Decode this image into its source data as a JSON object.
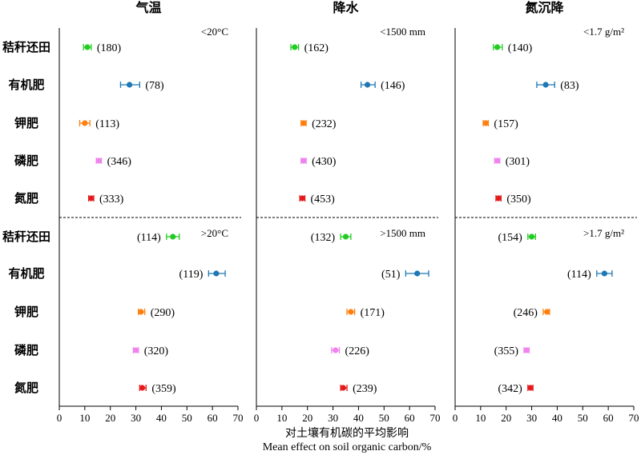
{
  "chart_data": {
    "type": "scatter",
    "axis_title_cn": "对土壤有机碳的平均影响",
    "axis_title_en": "Mean effect on soil organic carbon/%",
    "xlim": [
      0,
      70
    ],
    "xticks": [
      0,
      10,
      20,
      30,
      40,
      50,
      60,
      70
    ],
    "categories": [
      "秸秆还田",
      "有机肥",
      "钾肥",
      "磷肥",
      "氮肥"
    ],
    "series_colors": {
      "秸秆还田": "#22cc22",
      "有机肥": "#1f77b4",
      "钾肥": "#ff7f0e",
      "磷肥": "#ee82ee",
      "氮肥": "#e41a1c"
    },
    "panels": [
      {
        "title": "气温",
        "groups": [
          {
            "condition": "<20°C",
            "points": [
              {
                "category": "秸秆还田",
                "mean": 11,
                "lo": 9.5,
                "hi": 12.5,
                "n": "(180)"
              },
              {
                "category": "有机肥",
                "mean": 27.5,
                "lo": 24,
                "hi": 31.5,
                "n": "(78)"
              },
              {
                "category": "钾肥",
                "mean": 10,
                "lo": 8,
                "hi": 12,
                "n": "(113)"
              },
              {
                "category": "磷肥",
                "mean": 15.5,
                "lo": 14.5,
                "hi": 16.5,
                "n": "(346)"
              },
              {
                "category": "氮肥",
                "mean": 12.5,
                "lo": 11.5,
                "hi": 13.5,
                "n": "(333)"
              }
            ]
          },
          {
            "condition": ">20°C",
            "points": [
              {
                "category": "秸秆还田",
                "mean": 44.5,
                "lo": 42,
                "hi": 47,
                "n": "(114)"
              },
              {
                "category": "有机肥",
                "mean": 61.5,
                "lo": 58.5,
                "hi": 65,
                "n": "(119)"
              },
              {
                "category": "钾肥",
                "mean": 32,
                "lo": 31,
                "hi": 33.5,
                "n": "(290)"
              },
              {
                "category": "磷肥",
                "mean": 30,
                "lo": 29,
                "hi": 31,
                "n": "(320)"
              },
              {
                "category": "氮肥",
                "mean": 32.5,
                "lo": 31.5,
                "hi": 34,
                "n": "(359)"
              }
            ]
          }
        ]
      },
      {
        "title": "降水",
        "groups": [
          {
            "condition": "<1500 mm",
            "points": [
              {
                "category": "秸秆还田",
                "mean": 15,
                "lo": 13.5,
                "hi": 16.5,
                "n": "(162)"
              },
              {
                "category": "有机肥",
                "mean": 43.5,
                "lo": 41,
                "hi": 46.5,
                "n": "(146)"
              },
              {
                "category": "钾肥",
                "mean": 18.5,
                "lo": 17.5,
                "hi": 19.5,
                "n": "(232)"
              },
              {
                "category": "磷肥",
                "mean": 18.5,
                "lo": 17.5,
                "hi": 19.5,
                "n": "(430)"
              },
              {
                "category": "氮肥",
                "mean": 18,
                "lo": 17,
                "hi": 19,
                "n": "(453)"
              }
            ]
          },
          {
            "condition": ">1500 mm",
            "points": [
              {
                "category": "秸秆还田",
                "mean": 35,
                "lo": 33,
                "hi": 37,
                "n": "(132)"
              },
              {
                "category": "有机肥",
                "mean": 63,
                "lo": 58.5,
                "hi": 67.5,
                "n": "(51)"
              },
              {
                "category": "钾肥",
                "mean": 37,
                "lo": 35.5,
                "hi": 38.5,
                "n": "(171)"
              },
              {
                "category": "磷肥",
                "mean": 31,
                "lo": 29.5,
                "hi": 32.5,
                "n": "(226)"
              },
              {
                "category": "氮肥",
                "mean": 34,
                "lo": 33,
                "hi": 35.5,
                "n": "(239)"
              }
            ]
          }
        ]
      },
      {
        "title": "氮沉降",
        "groups": [
          {
            "condition": "<1.7 g/m²",
            "points": [
              {
                "category": "秸秆还田",
                "mean": 16.5,
                "lo": 15,
                "hi": 18.5,
                "n": "(140)"
              },
              {
                "category": "有机肥",
                "mean": 35.5,
                "lo": 32,
                "hi": 39,
                "n": "(83)"
              },
              {
                "category": "钾肥",
                "mean": 12,
                "lo": 11,
                "hi": 13,
                "n": "(157)"
              },
              {
                "category": "磷肥",
                "mean": 16.5,
                "lo": 15.5,
                "hi": 17.5,
                "n": "(301)"
              },
              {
                "category": "氮肥",
                "mean": 17,
                "lo": 16,
                "hi": 18,
                "n": "(350)"
              }
            ]
          },
          {
            "condition": ">1.7 g/m²",
            "points": [
              {
                "category": "秸秆还田",
                "mean": 30,
                "lo": 28.5,
                "hi": 31.5,
                "n": "(154)"
              },
              {
                "category": "有机肥",
                "mean": 58.5,
                "lo": 55.5,
                "hi": 61.5,
                "n": "(114)"
              },
              {
                "category": "钾肥",
                "mean": 36,
                "lo": 34.5,
                "hi": 37,
                "n": "(246)"
              },
              {
                "category": "磷肥",
                "mean": 28,
                "lo": 27,
                "hi": 29,
                "n": "(355)"
              },
              {
                "category": "氮肥",
                "mean": 29.5,
                "lo": 28.5,
                "hi": 30.5,
                "n": "(342)"
              }
            ]
          }
        ]
      }
    ]
  }
}
